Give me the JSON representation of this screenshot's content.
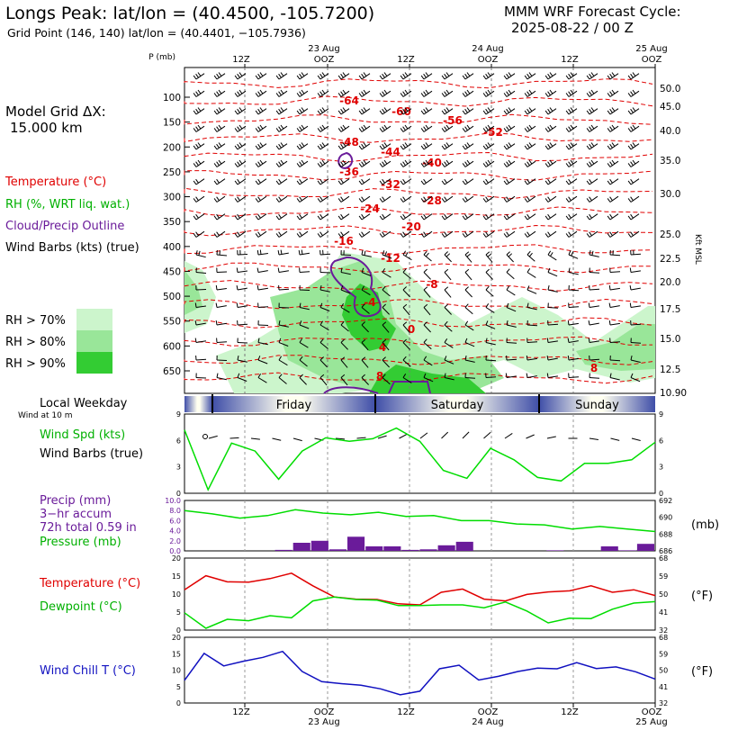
{
  "header": {
    "title": "Longs Peak:  lat/lon = (40.4500, -105.7200)",
    "grid_point": "Grid Point (146, 140) lat/lon = (40.4401, −105.7936)",
    "model": "MMM WRF Forecast Cycle:",
    "cycle": "2025-08-22 / 00  Z"
  },
  "left_panel": {
    "model_grid_line1": "Model Grid ΔX:",
    "model_grid_line2": "15.000 km",
    "legend_temp": "Temperature (°C)",
    "legend_rh": "RH (%, WRT liq. wat.)",
    "legend_cloud": "Cloud/Precip Outline",
    "legend_wind": "Wind Barbs (kts) (true)",
    "rh70": "RH > 70%",
    "rh80": "RH > 80%",
    "rh90": "RH > 90%",
    "local_weekday": "Local Weekday",
    "wind_at": "Wind at 10 m",
    "wind_spd": "Wind Spd (kts)",
    "wind_barbs": "Wind Barbs (true)",
    "precip1": "Precip (mm)",
    "precip2": "3−hr accum",
    "precip3": "72h total 0.59 in",
    "pressure": "Pressure (mb)",
    "temp": "Temperature (°C)",
    "dewpoint": "Dewpoint (°C)",
    "windchill": "Wind Chill T (°C)"
  },
  "right_labels": {
    "kft": "Kft MSL",
    "mb": "(mb)",
    "f1": "(°F)",
    "f2": "(°F)"
  },
  "colors": {
    "temp": "#e00000",
    "rh70": "#ccf5cc",
    "rh80": "#99e699",
    "rh90": "#33cc33",
    "cloud": "#6a1b9a",
    "wind": "#00dd00",
    "dew": "#00dd00",
    "chill": "#1010c0",
    "precip": "#6a1b9a"
  },
  "chart_data": [
    {
      "type": "heatmap",
      "name": "cross-section",
      "ylabel": "P (mb)",
      "pressure_ticks": [
        "100",
        "150",
        "200",
        "250",
        "300",
        "350",
        "400",
        "450",
        "500",
        "550",
        "600",
        "650"
      ],
      "height_ticks": [
        "50.0",
        "45.0",
        "40.0",
        "35.0",
        "30.0",
        "25.0",
        "22.5",
        "20.0",
        "17.5",
        "15.0",
        "12.5",
        "10.90"
      ],
      "top_time_labels": [
        {
          "line1": "",
          "line2": "12Z"
        },
        {
          "line1": "23 Aug",
          "line2": "OOZ"
        },
        {
          "line1": "",
          "line2": "12Z"
        },
        {
          "line1": "24 Aug",
          "line2": "OOZ"
        },
        {
          "line1": "",
          "line2": "12Z"
        },
        {
          "line1": "25 Aug",
          "line2": "OOZ"
        }
      ],
      "temp_labels": [
        "-64",
        "-60",
        "-56",
        "-52",
        "-48",
        "-44",
        "-40",
        "-36",
        "-32",
        "-28",
        "-24",
        "-20",
        "-16",
        "-12",
        "-8",
        "-4",
        "0",
        "4",
        "8",
        "8"
      ]
    },
    {
      "type": "table",
      "name": "weekday",
      "days": [
        "Friday",
        "Saturday",
        "Sunday"
      ]
    },
    {
      "type": "line",
      "name": "wind-speed",
      "ylim": [
        0,
        9
      ],
      "y_ticks": [
        "0",
        "3",
        "6",
        "9"
      ],
      "series": [
        {
          "name": "Wind Spd (kts)",
          "values": [
            7.2,
            0.4,
            5.7,
            4.8,
            1.6,
            4.8,
            6.3,
            5.9,
            6.2,
            7.4,
            5.9,
            2.6,
            1.7,
            5.1,
            3.8,
            1.8,
            1.4,
            3.4,
            3.4,
            3.8,
            5.8
          ]
        }
      ]
    },
    {
      "type": "bar",
      "name": "precip-pressure",
      "y_ticks": [
        "0.0",
        "2.0",
        "4.0",
        "6.0",
        "8.0",
        "10.0"
      ],
      "y2_ticks": [
        "686",
        "688",
        "690",
        "692"
      ],
      "precip": [
        0,
        0,
        0,
        0,
        0,
        0.2,
        1.6,
        2.0,
        0.3,
        2.8,
        0.9,
        0.9,
        0.2,
        0.3,
        1.1,
        1.8,
        0,
        0,
        0,
        0,
        0.1,
        0,
        0,
        0.9,
        0.1,
        1.4
      ],
      "pressure": [
        690.8,
        690.4,
        689.9,
        690.2,
        690.9,
        690.5,
        690.3,
        690.6,
        690.1,
        690.2,
        689.6,
        689.6,
        689.2,
        689.1,
        688.6,
        688.9,
        688.6,
        688.3
      ]
    },
    {
      "type": "line",
      "name": "temperature-dewpoint",
      "ylim": [
        0,
        20
      ],
      "y_ticks": [
        "0",
        "5",
        "10",
        "15",
        "20"
      ],
      "y2_ticks": [
        "32",
        "41",
        "50",
        "59",
        "68"
      ],
      "series": [
        {
          "name": "Temperature (°C)",
          "values": [
            11.2,
            15.1,
            13.4,
            13.3,
            14.3,
            15.8,
            12.3,
            9.2,
            8.6,
            8.5,
            7.3,
            7.0,
            10.5,
            11.4,
            8.6,
            8.1,
            9.9,
            10.6,
            10.9,
            12.3,
            10.5,
            11.2,
            9.6
          ]
        },
        {
          "name": "Dewpoint (°C)",
          "values": [
            4.8,
            0.5,
            3.0,
            2.6,
            4.0,
            3.4,
            8.1,
            9.2,
            8.5,
            8.3,
            6.8,
            6.8,
            7.0,
            7.0,
            6.2,
            7.8,
            5.3,
            2.0,
            3.3,
            3.2,
            5.8,
            7.5,
            7.9
          ]
        }
      ]
    },
    {
      "type": "line",
      "name": "wind-chill",
      "ylim": [
        0,
        20
      ],
      "y_ticks": [
        "0",
        "5",
        "10",
        "15",
        "20"
      ],
      "y2_ticks": [
        "32",
        "41",
        "50",
        "59",
        "68"
      ],
      "x_labels": [
        {
          "line1": "12Z",
          "line2": ""
        },
        {
          "line1": "OOZ",
          "line2": "23 Aug"
        },
        {
          "line1": "12Z",
          "line2": ""
        },
        {
          "line1": "OOZ",
          "line2": "24 Aug"
        },
        {
          "line1": "12Z",
          "line2": ""
        },
        {
          "line1": "OOZ",
          "line2": "25 Aug"
        }
      ],
      "series": [
        {
          "name": "Wind Chill T (°C)",
          "values": [
            6.9,
            15.1,
            11.3,
            12.7,
            13.9,
            15.7,
            9.6,
            6.5,
            5.9,
            5.4,
            4.3,
            2.5,
            3.6,
            10.4,
            11.5,
            7.0,
            8.1,
            9.6,
            10.6,
            10.4,
            12.3,
            10.5,
            11.0,
            9.5,
            7.3
          ]
        }
      ]
    }
  ]
}
